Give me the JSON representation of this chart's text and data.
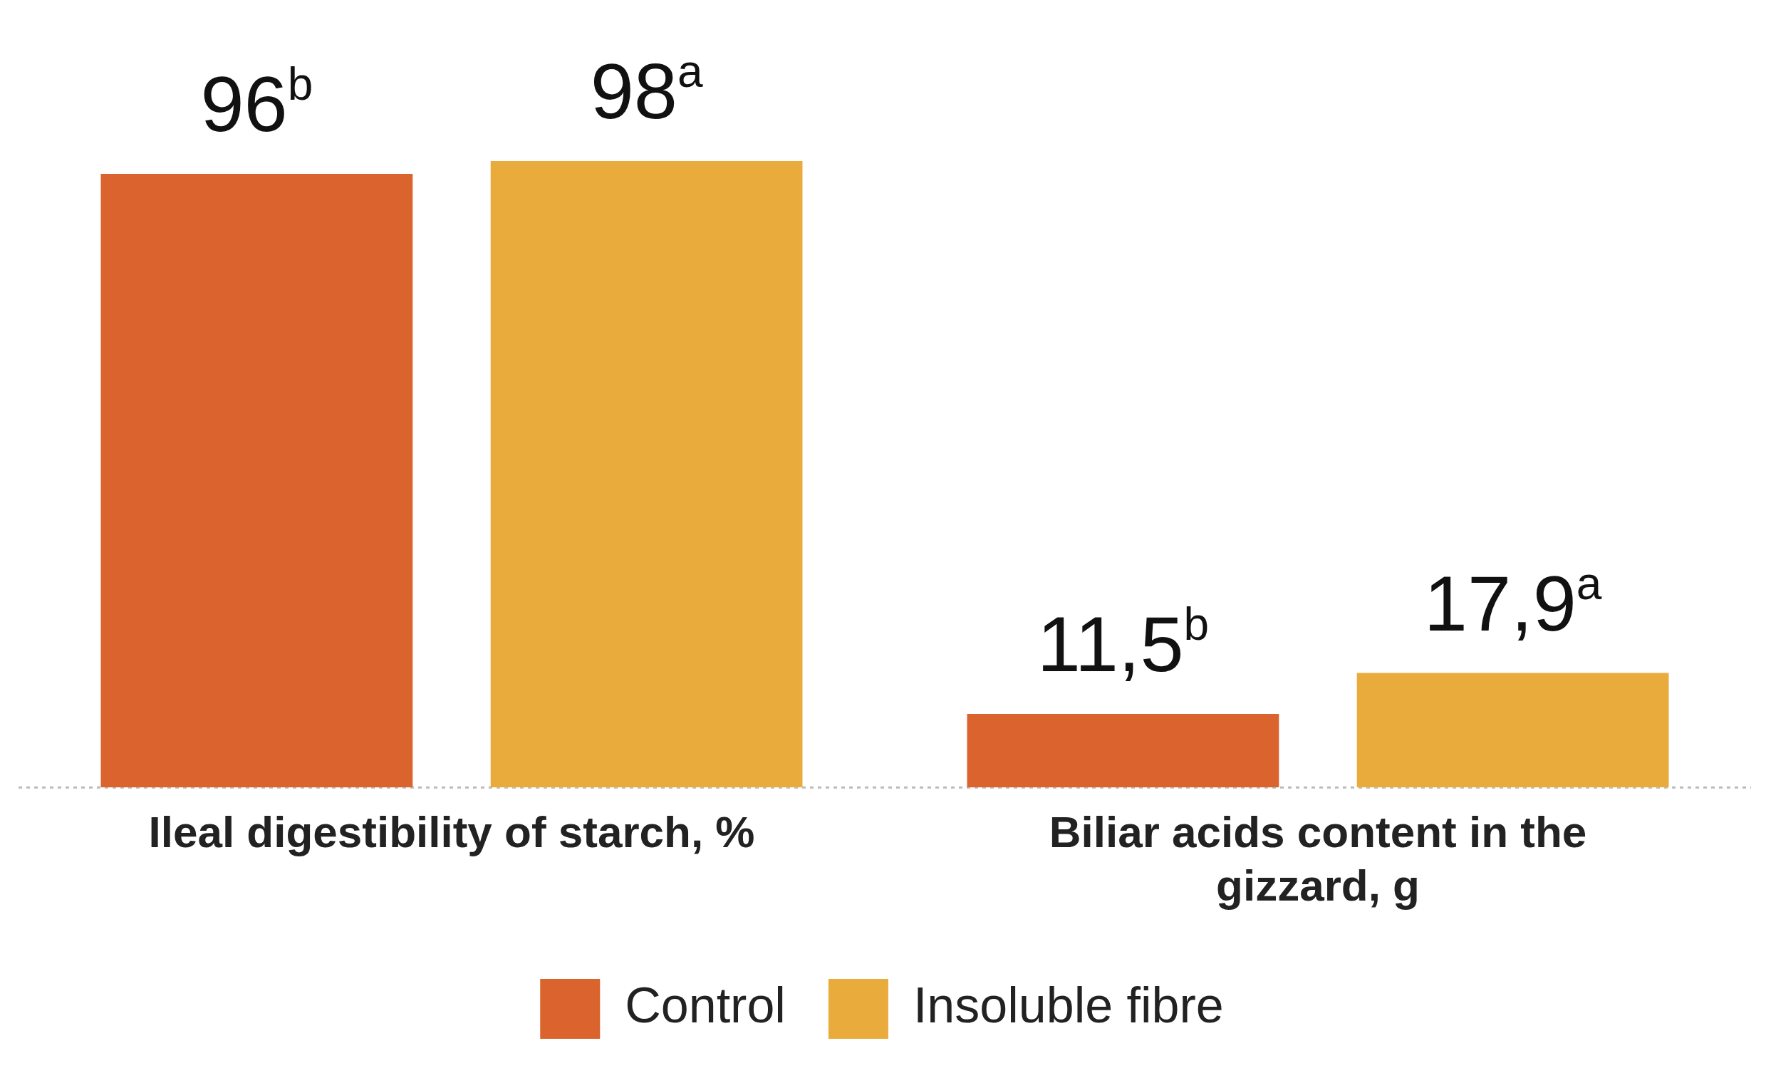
{
  "chart_data": {
    "type": "bar",
    "categories": [
      "Ileal digestibility of starch, %",
      "Biliar acids content in the gizzard, g"
    ],
    "series": [
      {
        "name": "Control",
        "color": "#db632d",
        "values": [
          96,
          11.5
        ],
        "value_labels": [
          "96$^{b}$",
          "11,5$^{b}$"
        ]
      },
      {
        "name": "Insoluble fibre",
        "color": "#e9ab3b",
        "values": [
          98,
          17.9
        ],
        "value_labels": [
          "98$^{a}$",
          "17,9$^{a}$"
        ]
      }
    ],
    "legend": "bottom",
    "grid": false,
    "relative": false
  }
}
